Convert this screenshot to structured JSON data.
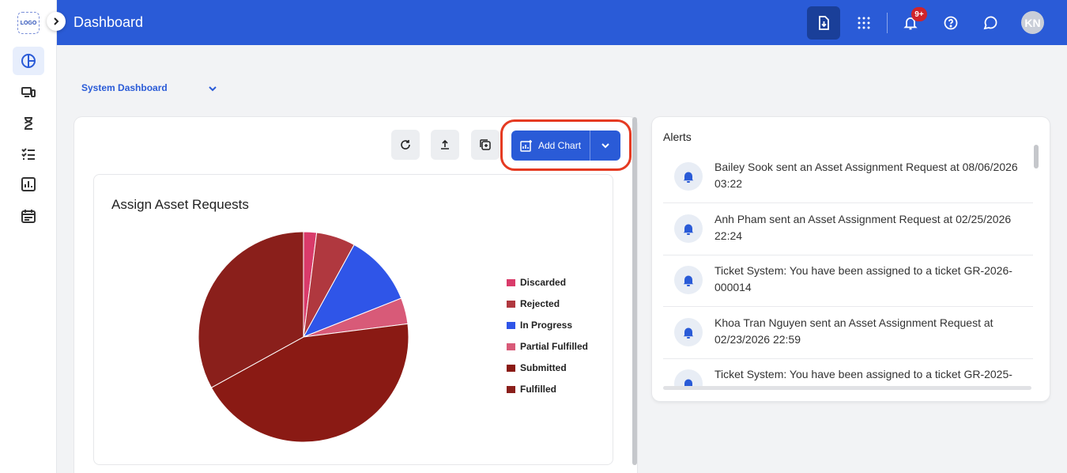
{
  "app": {
    "logo_text": "LOGO",
    "title": "Dashboard",
    "notification_badge": "9+",
    "avatar_initials": "KN"
  },
  "sidebar": {
    "items": [
      {
        "name": "dashboard",
        "icon": "pie-chart-icon",
        "active": true
      },
      {
        "name": "devices",
        "icon": "devices-icon"
      },
      {
        "name": "hourglass",
        "icon": "hourglass-icon"
      },
      {
        "name": "tasks",
        "icon": "checklist-icon"
      },
      {
        "name": "reports",
        "icon": "bar-chart-icon"
      },
      {
        "name": "calendar",
        "icon": "calendar-icon"
      }
    ]
  },
  "dashboard_selector": {
    "value": "System Dashboard"
  },
  "toolbar": {
    "add_chart_label": "Add Chart"
  },
  "chart_data": {
    "type": "pie",
    "title": "Assign Asset Requests",
    "legend_position": "right",
    "slices": [
      {
        "label": "Discarded",
        "value": 2,
        "color": "#d93b6a"
      },
      {
        "label": "Rejected",
        "value": 6,
        "color": "#b0383f"
      },
      {
        "label": "In Progress",
        "value": 11,
        "color": "#2f55e8"
      },
      {
        "label": "Partial Fulfilled",
        "value": 4,
        "color": "#d85a78"
      },
      {
        "label": "Submitted",
        "value": 44,
        "color": "#8a1a14"
      },
      {
        "label": "Fulfilled",
        "value": 33,
        "color": "#8a1f1b"
      }
    ]
  },
  "alerts": {
    "title": "Alerts",
    "items": [
      {
        "text": "Bailey Sook sent an Asset Assignment Request at 08/06/2026 03:22"
      },
      {
        "text": "Anh Pham sent an Asset Assignment Request at 02/25/2026 22:24"
      },
      {
        "text": "Ticket System: You have been assigned to a ticket GR-2026-000014"
      },
      {
        "text": "Khoa Tran Nguyen sent an Asset Assignment Request at 02/23/2026 22:59"
      },
      {
        "text": "Ticket System: You have been assigned to a ticket GR-2025-"
      }
    ]
  }
}
